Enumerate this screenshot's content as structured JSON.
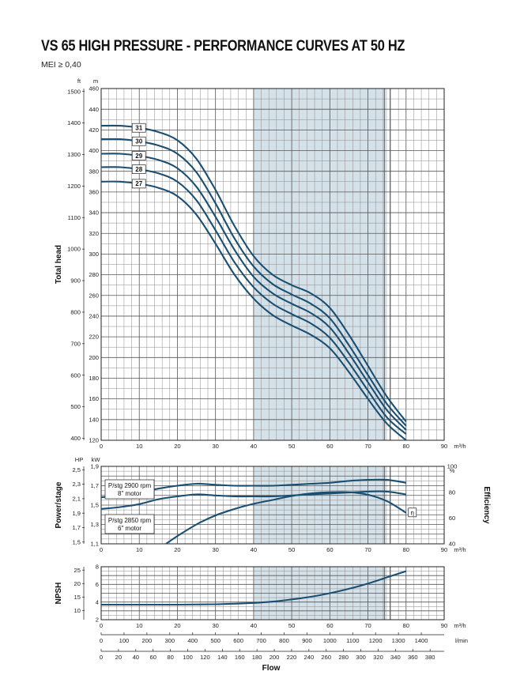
{
  "title": "VS 65 HIGH PRESSURE - PERFORMANCE CURVES AT 50 HZ",
  "subtitle": "MEI ≥ 0,40",
  "chart_data": [
    {
      "type": "line",
      "id": "head",
      "ylabel": "Total head",
      "y_units": [
        "ft",
        "m"
      ],
      "x_unit": "m³/h",
      "xlim": [
        0,
        90
      ],
      "ylim": [
        120,
        460
      ],
      "y_ticks": [
        120,
        140,
        160,
        180,
        200,
        220,
        240,
        260,
        280,
        300,
        320,
        340,
        360,
        380,
        400,
        420,
        440,
        460
      ],
      "ft_ticks": [
        400,
        500,
        600,
        700,
        800,
        900,
        1000,
        1100,
        1200,
        1300,
        1400,
        1500
      ],
      "x_ticks": [
        0,
        10,
        20,
        30,
        40,
        50,
        60,
        70,
        80,
        90
      ],
      "shaded_range": [
        40,
        75
      ],
      "series": [
        {
          "name": "31",
          "x": [
            0,
            5,
            10,
            15,
            20,
            25,
            30,
            35,
            40,
            45,
            50,
            55,
            60,
            65,
            70,
            75,
            80
          ],
          "y": [
            424,
            424,
            422,
            418,
            410,
            392,
            362,
            327,
            298,
            280,
            270,
            262,
            248,
            222,
            192,
            162,
            138
          ]
        },
        {
          "name": "30",
          "x": [
            0,
            5,
            10,
            15,
            20,
            25,
            30,
            35,
            40,
            45,
            50,
            55,
            60,
            65,
            70,
            75,
            80
          ],
          "y": [
            411,
            411,
            409,
            405,
            397,
            379,
            349,
            315,
            288,
            271,
            261,
            252,
            238,
            212,
            183,
            155,
            134
          ]
        },
        {
          "name": "29",
          "x": [
            0,
            5,
            10,
            15,
            20,
            25,
            30,
            35,
            40,
            45,
            50,
            55,
            60,
            65,
            70,
            75,
            80
          ],
          "y": [
            397,
            397,
            395,
            391,
            383,
            365,
            336,
            304,
            278,
            262,
            252,
            243,
            229,
            204,
            176,
            149,
            130
          ]
        },
        {
          "name": "28",
          "x": [
            0,
            5,
            10,
            15,
            20,
            25,
            30,
            35,
            40,
            45,
            50,
            55,
            60,
            65,
            70,
            75,
            80
          ],
          "y": [
            384,
            384,
            382,
            378,
            370,
            352,
            323,
            292,
            268,
            252,
            242,
            233,
            219,
            195,
            168,
            142,
            126
          ]
        },
        {
          "name": "27",
          "x": [
            0,
            5,
            10,
            15,
            20,
            25,
            30,
            35,
            40,
            45,
            50,
            55,
            60,
            65,
            70,
            75,
            80
          ],
          "y": [
            370,
            370,
            368,
            364,
            356,
            338,
            310,
            280,
            257,
            241,
            231,
            222,
            209,
            186,
            160,
            136,
            120
          ]
        }
      ]
    },
    {
      "type": "line",
      "id": "power",
      "ylabel": "Power/stage",
      "y2label": "Efficiency",
      "y_units": [
        "HP",
        "kW"
      ],
      "y2_unit": "%",
      "x_unit": "m³/h",
      "xlim": [
        0,
        90
      ],
      "ylim": [
        1.1,
        1.9
      ],
      "y_ticks": [
        1.1,
        1.3,
        1.5,
        1.7,
        1.9
      ],
      "hp_ticks": [
        1.5,
        1.7,
        1.9,
        2.1,
        2.3,
        2.5
      ],
      "y2_ticks": [
        40,
        60,
        80,
        100
      ],
      "y2lim": [
        40,
        100
      ],
      "x_ticks": [
        0,
        10,
        20,
        30,
        40,
        50,
        60,
        70,
        80,
        90
      ],
      "shaded_range": [
        40,
        75
      ],
      "series": [
        {
          "name": "P/stg 2900 rpm 8\" motor",
          "x": [
            0,
            5,
            10,
            15,
            20,
            25,
            30,
            35,
            40,
            45,
            50,
            55,
            60,
            65,
            70,
            75,
            80
          ],
          "y": [
            1.58,
            1.6,
            1.63,
            1.67,
            1.7,
            1.72,
            1.71,
            1.7,
            1.7,
            1.7,
            1.71,
            1.72,
            1.73,
            1.75,
            1.76,
            1.76,
            1.73
          ]
        },
        {
          "name": "P/stg 2850 rpm 6\" motor",
          "x": [
            0,
            5,
            10,
            15,
            20,
            25,
            30,
            35,
            40,
            45,
            50,
            55,
            60,
            65,
            70,
            75,
            80
          ],
          "y": [
            1.46,
            1.48,
            1.51,
            1.56,
            1.59,
            1.61,
            1.6,
            1.59,
            1.59,
            1.59,
            1.6,
            1.61,
            1.62,
            1.63,
            1.64,
            1.64,
            1.61
          ]
        },
        {
          "name": "η",
          "axis": "efficiency",
          "x": [
            17,
            20,
            25,
            30,
            35,
            40,
            45,
            50,
            55,
            60,
            65,
            70,
            75,
            80
          ],
          "y": [
            40,
            46,
            55,
            62,
            67,
            71,
            74,
            77,
            79,
            80,
            80,
            78,
            73,
            64
          ]
        }
      ]
    },
    {
      "type": "line",
      "id": "npsh",
      "ylabel": "NPSH",
      "y_units": [
        "ft",
        "m"
      ],
      "x_unit": "m³/h",
      "xlim": [
        0,
        90
      ],
      "ylim": [
        2,
        8
      ],
      "y_ticks": [
        2,
        4,
        6,
        8
      ],
      "ft_ticks": [
        10,
        15,
        20,
        25
      ],
      "x_ticks": [
        0,
        10,
        20,
        30,
        40,
        50,
        60,
        70,
        80,
        90
      ],
      "shaded_range": [
        40,
        75
      ],
      "series": [
        {
          "name": "NPSH",
          "x": [
            0,
            10,
            20,
            30,
            40,
            45,
            50,
            55,
            60,
            65,
            70,
            75,
            80
          ],
          "y": [
            3.7,
            3.7,
            3.7,
            3.75,
            3.9,
            4.05,
            4.3,
            4.6,
            5.0,
            5.5,
            6.1,
            6.8,
            7.5
          ]
        }
      ],
      "xaxis2": {
        "unit": "l/min",
        "ticks": [
          0,
          100,
          200,
          300,
          400,
          500,
          600,
          700,
          800,
          900,
          1000,
          1100,
          1200,
          1300,
          1400
        ]
      },
      "xaxis3": {
        "label": "Flow",
        "ticks": [
          0,
          20,
          40,
          60,
          80,
          100,
          120,
          140,
          160,
          180,
          200,
          220,
          240,
          260,
          280,
          300,
          320,
          340,
          360,
          380
        ]
      }
    }
  ]
}
